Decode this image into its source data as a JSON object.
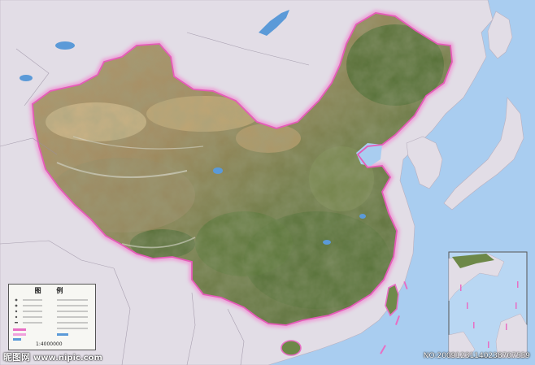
{
  "legend": {
    "title": "图 例",
    "scale": "1:4000000"
  },
  "watermark_left": {
    "brand": "昵图网",
    "url": "www.nipic.com"
  },
  "watermark_right": "NO:20091231140238707559",
  "colors": {
    "sea": "#a9cdf0",
    "neighbor_land": "#e2dde6",
    "border_glow": "#e86ec4",
    "terrain_desert": "#c9ad7e",
    "terrain_forest": "#4f6e34",
    "terrain_mountain": "#8b7a55",
    "lakes": "#5b9ad8"
  },
  "icons": {
    "main_map": "satellite-terrain-map",
    "inset": "south-china-sea-inset"
  }
}
